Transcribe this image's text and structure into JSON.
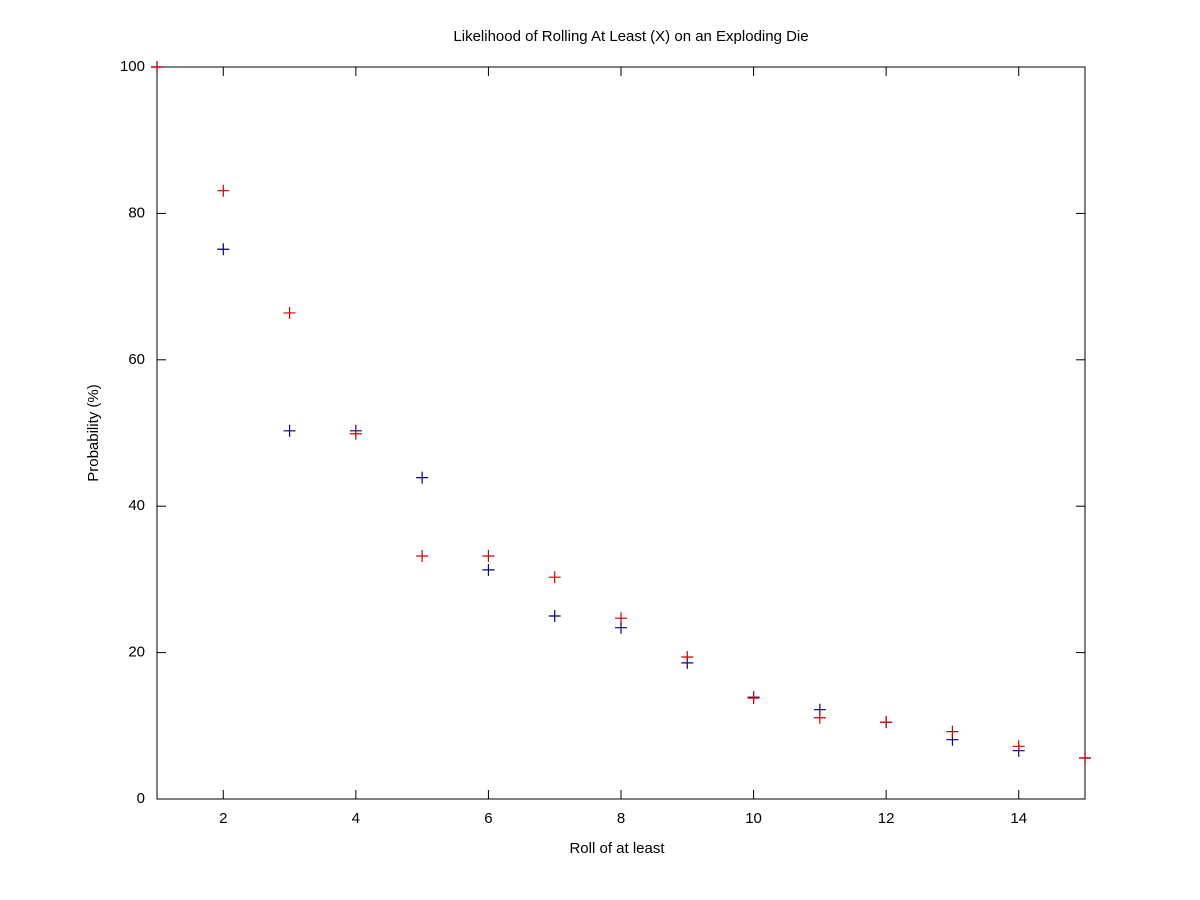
{
  "chart_data": {
    "type": "scatter",
    "title": "Likelihood of Rolling At Least (X) on an Exploding Die",
    "x_label": "Roll of at least",
    "y_label": "Probability (%)",
    "xlim": [
      1,
      15
    ],
    "xticks": [
      2,
      4,
      6,
      8,
      10,
      12,
      14
    ],
    "ylim": [
      0,
      100
    ],
    "yticks": [
      0,
      20,
      40,
      60,
      80,
      100
    ],
    "grid": false,
    "marker": "+",
    "series": [
      {
        "color": "#000080",
        "x": [
          1,
          2,
          3,
          4,
          5,
          6,
          7,
          8,
          9,
          10,
          11,
          12,
          13,
          14,
          15
        ],
        "values": [
          100,
          75.1,
          50.3,
          50.3,
          43.9,
          31.3,
          25,
          23.4,
          18.6,
          13.9,
          12.2,
          10.5,
          8.1,
          6.6,
          5.6
        ]
      },
      {
        "color": "#cc0000",
        "x": [
          1,
          2,
          3,
          4,
          5,
          6,
          7,
          8,
          9,
          10,
          11,
          12,
          13,
          14,
          15
        ],
        "values": [
          100,
          83.1,
          66.4,
          49.9,
          33.2,
          33.2,
          30.3,
          24.7,
          19.4,
          13.8,
          11.1,
          10.5,
          9.2,
          7.2,
          5.6
        ]
      }
    ]
  }
}
